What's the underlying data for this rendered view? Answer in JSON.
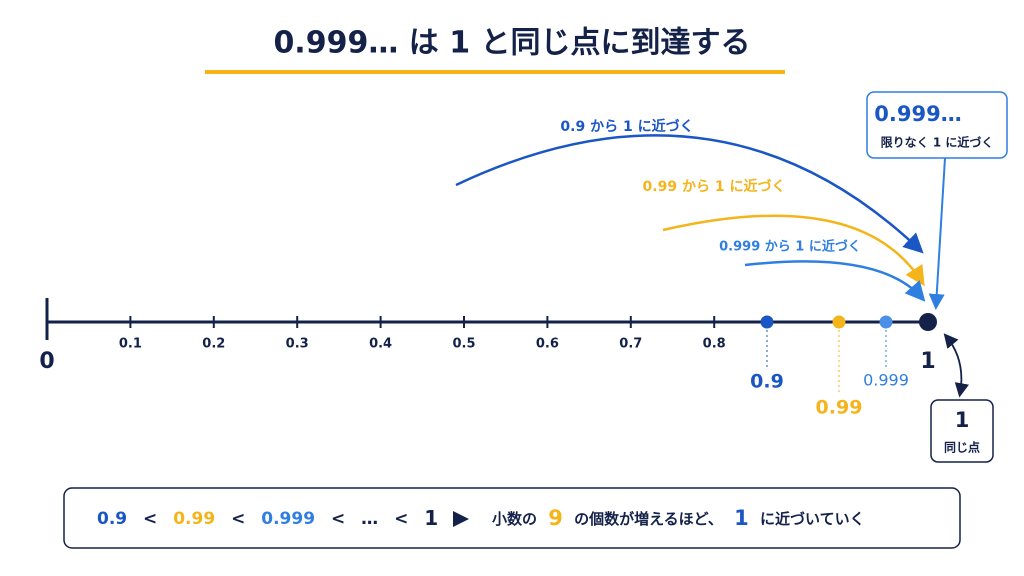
{
  "title": "0.999… は 1 と同じ点に到達する",
  "number_line": {
    "start_label": "0",
    "end_label": "1",
    "tick_labels": [
      "0.1",
      "0.2",
      "0.3",
      "0.4",
      "0.5",
      "0.6",
      "0.7",
      "0.8"
    ]
  },
  "points": [
    {
      "label": "0.9",
      "arc_label": "0.9 から 1 に近づく"
    },
    {
      "label": "0.99",
      "arc_label": "0.99 から 1 に近づく"
    },
    {
      "label": "0.999",
      "arc_label": "0.999 から 1 に近づく"
    }
  ],
  "callout": {
    "value": "0.999…",
    "text": "限りなく 1 に近づく"
  },
  "same_point": {
    "value": "1",
    "text": "同じ点"
  },
  "footer": {
    "parts": [
      "0.9",
      "<",
      "0.99",
      "<",
      "0.999",
      "<",
      "…",
      "<",
      "1",
      "小数の",
      "9",
      "の個数が増えるほど、",
      "1",
      "に近づいていく"
    ]
  }
}
